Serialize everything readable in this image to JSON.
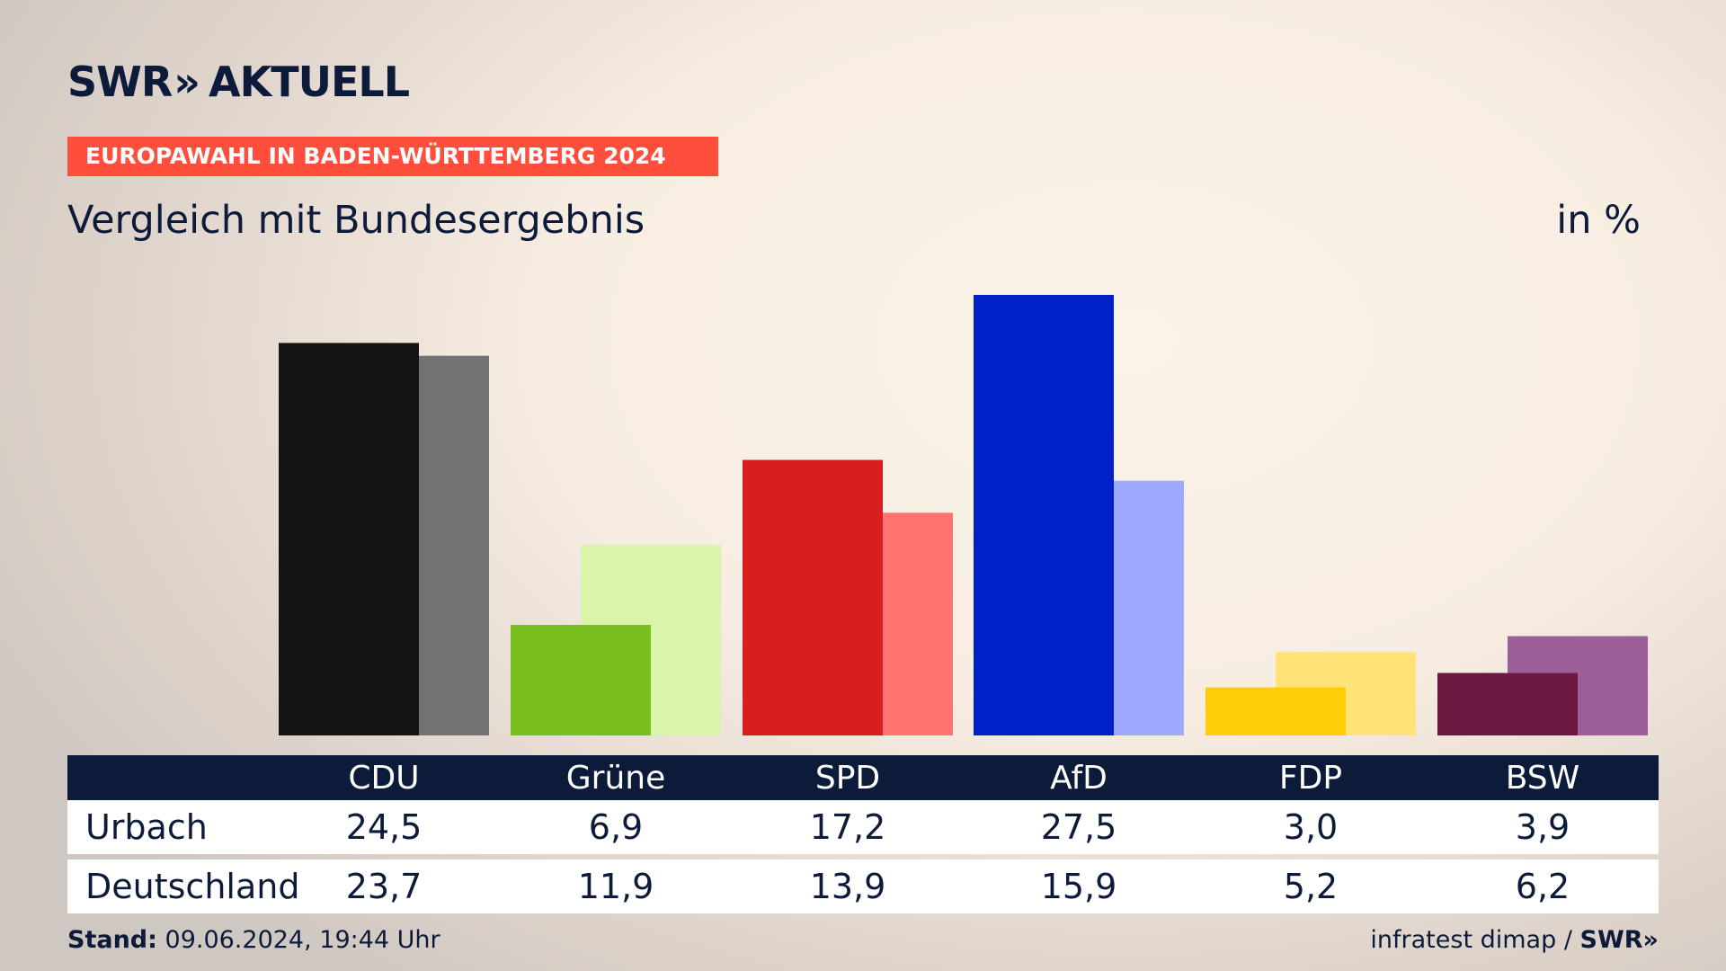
{
  "brand": {
    "name": "SWR",
    "chevrons": "»",
    "section": "AKTUELL"
  },
  "banner": "EUROPAWAHL IN BADEN-WÜRTTEMBERG 2024",
  "subtitle": "Vergleich mit Bundesergebnis",
  "unit": "in %",
  "table": {
    "row1_label": "Urbach",
    "row2_label": "Deutschland"
  },
  "footer": {
    "stand_label": "Stand:",
    "stand_value": "09.06.2024, 19:44 Uhr",
    "source": "infratest dimap /",
    "swr": "SWR»"
  },
  "chart_data": {
    "type": "bar",
    "categories": [
      "CDU",
      "Grüne",
      "SPD",
      "AfD",
      "FDP",
      "BSW"
    ],
    "series": [
      {
        "name": "Urbach",
        "values": [
          24.5,
          6.9,
          17.2,
          27.5,
          3.0,
          3.9
        ],
        "labels": [
          "24,5",
          "6,9",
          "17,2",
          "27,5",
          "3,0",
          "3,9"
        ],
        "colors": [
          "#141414",
          "#78be1e",
          "#d71f1f",
          "#0021c8",
          "#ffcc0a",
          "#6b1941"
        ]
      },
      {
        "name": "Deutschland",
        "values": [
          23.7,
          11.9,
          13.9,
          15.9,
          5.2,
          6.2
        ],
        "labels": [
          "23,7",
          "11,9",
          "13,9",
          "15,9",
          "5,2",
          "6,2"
        ],
        "colors": [
          "#737373",
          "#d8f5aa",
          "#ff7470",
          "#9ea9ff",
          "#ffe377",
          "#9d5f9a"
        ]
      }
    ],
    "ylim": [
      0,
      27.5
    ],
    "grid": false,
    "legend": "none"
  }
}
